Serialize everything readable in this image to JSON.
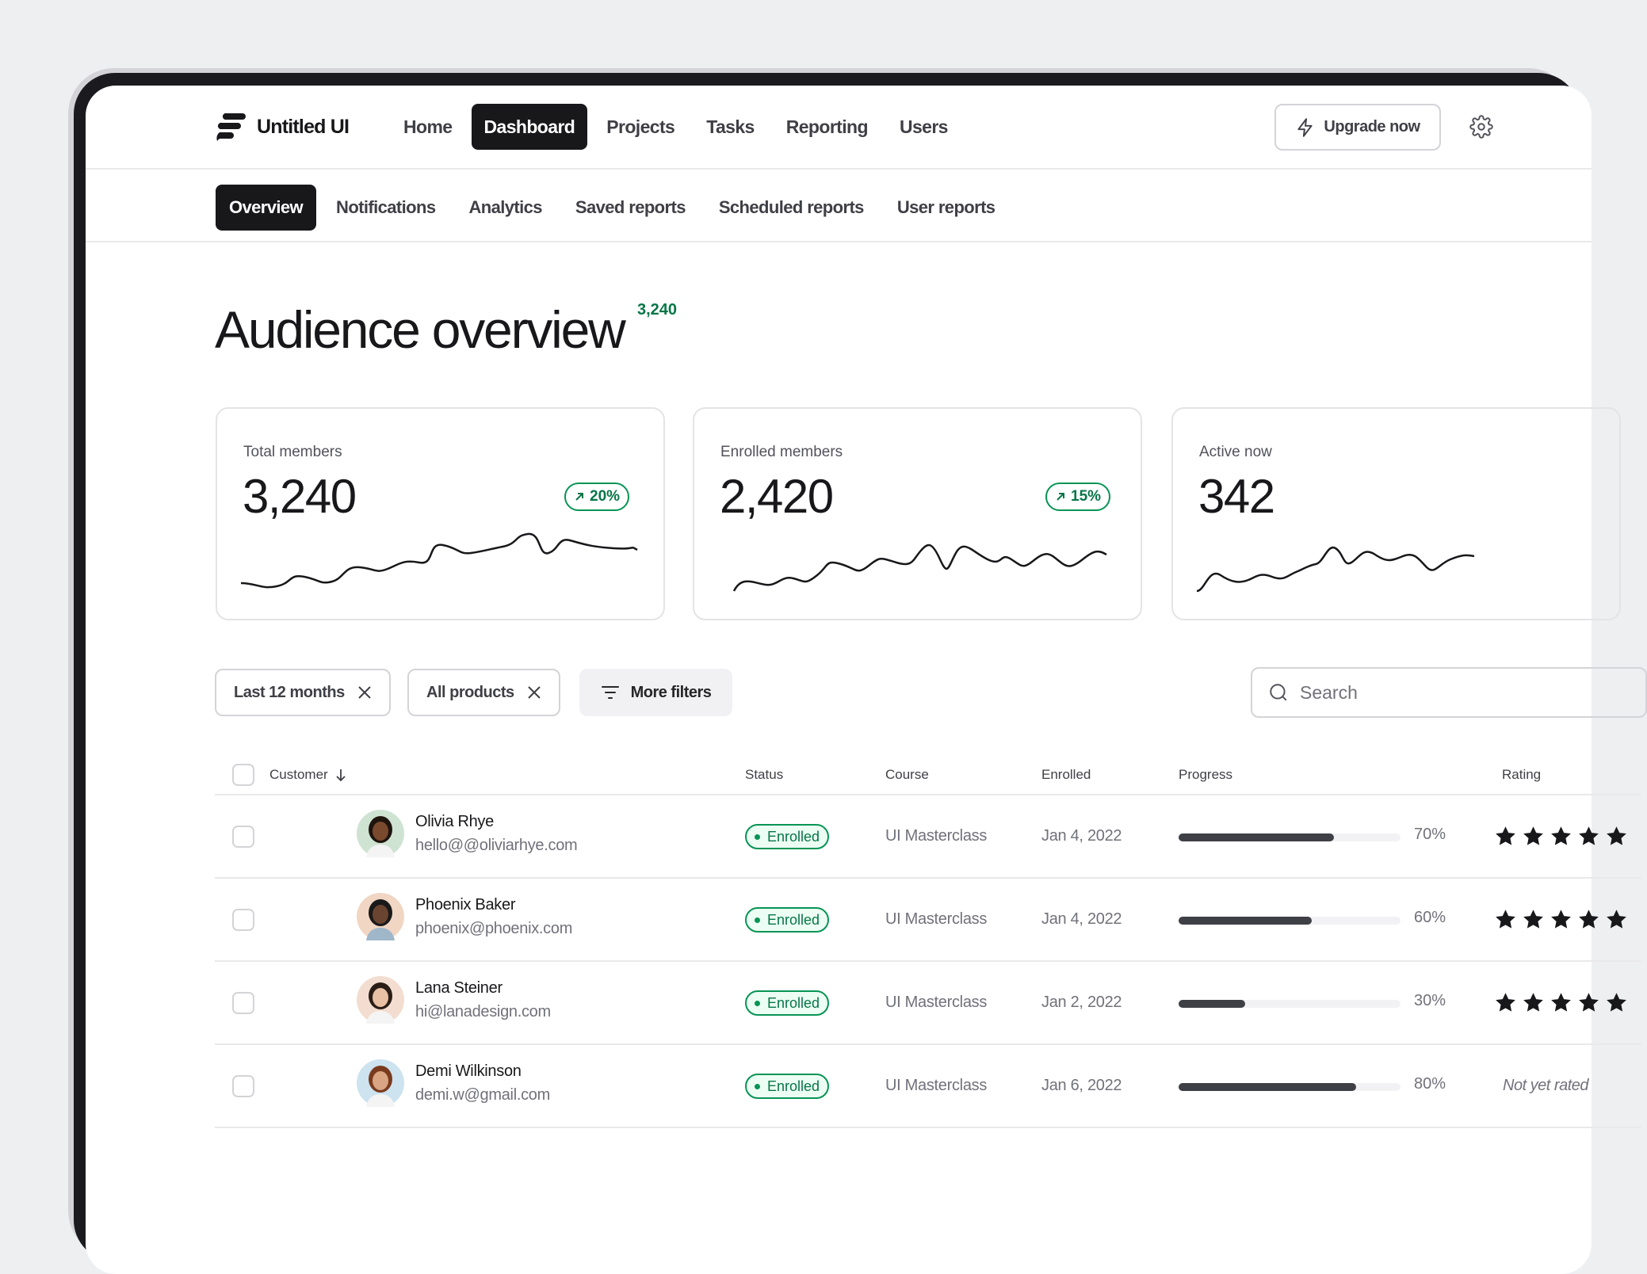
{
  "brand": {
    "name": "Untitled UI"
  },
  "topnav": {
    "items": [
      {
        "label": "Home"
      },
      {
        "label": "Dashboard",
        "active": true
      },
      {
        "label": "Projects"
      },
      {
        "label": "Tasks"
      },
      {
        "label": "Reporting"
      },
      {
        "label": "Users"
      }
    ],
    "upgrade_label": "Upgrade now",
    "upgrade_icon": "lightning-icon",
    "settings_icon": "gear-icon"
  },
  "subnav": {
    "items": [
      {
        "label": "Overview",
        "active": true
      },
      {
        "label": "Notifications"
      },
      {
        "label": "Analytics"
      },
      {
        "label": "Saved reports"
      },
      {
        "label": "Scheduled reports"
      },
      {
        "label": "User reports"
      }
    ]
  },
  "page": {
    "title": "Audience overview",
    "count": "3,240"
  },
  "stats": [
    {
      "label": "Total members",
      "value": "3,240",
      "trend": "20%",
      "trend_icon": "arrow-up-right-icon"
    },
    {
      "label": "Enrolled members",
      "value": "2,420",
      "trend": "15%",
      "trend_icon": "arrow-up-right-icon"
    },
    {
      "label": "Active now",
      "value": "342"
    }
  ],
  "filters": {
    "chips": [
      {
        "label": "Last 12 months"
      },
      {
        "label": "All products"
      }
    ],
    "more_label": "More filters",
    "search_placeholder": "Search"
  },
  "table": {
    "headers": {
      "customer": "Customer",
      "status": "Status",
      "course": "Course",
      "enrolled": "Enrolled",
      "progress": "Progress",
      "rating": "Rating"
    },
    "rows": [
      {
        "name": "Olivia Rhye",
        "email": "hello@@oliviarhye.com",
        "status": "Enrolled",
        "course": "UI Masterclass",
        "enrolled": "Jan 4, 2022",
        "progress": 70,
        "progress_label": "70%",
        "rating": 5
      },
      {
        "name": "Phoenix Baker",
        "email": "phoenix@phoenix.com",
        "status": "Enrolled",
        "course": "UI Masterclass",
        "enrolled": "Jan 4, 2022",
        "progress": 60,
        "progress_label": "60%",
        "rating": 5
      },
      {
        "name": "Lana Steiner",
        "email": "hi@lanadesign.com",
        "status": "Enrolled",
        "course": "UI Masterclass",
        "enrolled": "Jan 2, 2022",
        "progress": 30,
        "progress_label": "30%",
        "rating": 5
      },
      {
        "name": "Demi Wilkinson",
        "email": "demi.w@gmail.com",
        "status": "Enrolled",
        "course": "UI Masterclass",
        "enrolled": "Jan 6, 2022",
        "progress": 80,
        "progress_label": "80%",
        "rating_text": "Not yet rated"
      }
    ]
  },
  "colors": {
    "accent": "#18181b",
    "success": "#079455",
    "success_text": "#067647",
    "background": "#eeeff1"
  }
}
